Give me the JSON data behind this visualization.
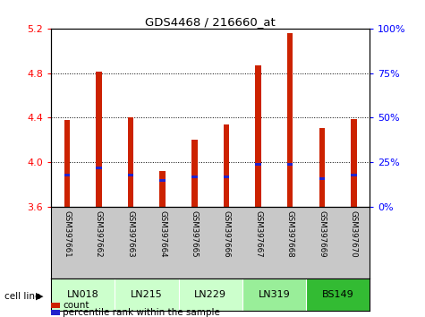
{
  "title": "GDS4468 / 216660_at",
  "samples": [
    "GSM397661",
    "GSM397662",
    "GSM397663",
    "GSM397664",
    "GSM397665",
    "GSM397666",
    "GSM397667",
    "GSM397668",
    "GSM397669",
    "GSM397670"
  ],
  "cell_line_groups": [
    "LN018",
    "LN215",
    "LN229",
    "LN319",
    "BS149"
  ],
  "cell_line_spans": [
    [
      0,
      1
    ],
    [
      2,
      3
    ],
    [
      4,
      5
    ],
    [
      6,
      7
    ],
    [
      8,
      9
    ]
  ],
  "cell_line_colors": [
    "#ccffcc",
    "#ccffcc",
    "#ccffcc",
    "#99ee99",
    "#33bb33"
  ],
  "count_values": [
    4.38,
    4.81,
    4.4,
    3.92,
    4.2,
    4.34,
    4.87,
    5.16,
    4.31,
    4.39
  ],
  "percentile_values": [
    18,
    22,
    18,
    15,
    17,
    17,
    24,
    24,
    16,
    18
  ],
  "ymin": 3.6,
  "ymax": 5.2,
  "yticks_left": [
    3.6,
    4.0,
    4.4,
    4.8,
    5.2
  ],
  "yticks_right": [
    0,
    25,
    50,
    75,
    100
  ],
  "bar_color": "#cc2200",
  "blue_color": "#2222cc",
  "sample_bg": "#c8c8c8",
  "grid_dotted_at": [
    4.0,
    4.4,
    4.8
  ]
}
